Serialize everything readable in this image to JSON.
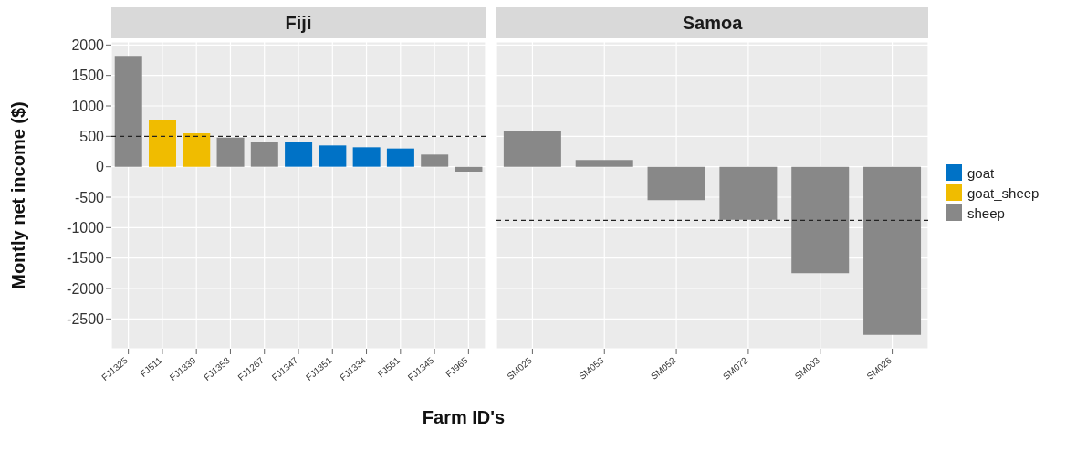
{
  "chart_data": [
    {
      "type": "bar",
      "title": "Fiji",
      "xlabel": "Farm ID's",
      "ylabel": "Montly net income ($)",
      "stacked": true,
      "grid": true,
      "legend": "right",
      "categories": [
        "FJ1325",
        "FJ511",
        "FJ1339",
        "FJ1353",
        "FJ1267",
        "FJ1347",
        "FJ1351",
        "FJ1334",
        "FJ551",
        "FJ1345",
        "FJ965"
      ],
      "series": [
        {
          "name": "goat",
          "color": "#0072c6",
          "values": [
            null,
            null,
            null,
            null,
            null,
            400,
            350,
            320,
            300,
            null,
            null
          ]
        },
        {
          "name": "goat_sheep",
          "color": "#f0bc00",
          "values": [
            null,
            770,
            550,
            null,
            null,
            null,
            null,
            null,
            null,
            null,
            null
          ]
        },
        {
          "name": "sheep",
          "color": "#888888",
          "values": [
            1820,
            null,
            null,
            480,
            400,
            null,
            null,
            null,
            null,
            200,
            -80
          ]
        }
      ],
      "ylim": [
        -2990,
        2050
      ],
      "yticks": [
        -2500,
        -2000,
        -1500,
        -1000,
        -500,
        0,
        500,
        1000,
        1500,
        2000
      ],
      "ref_lines": [
        {
          "axis": "y",
          "value": 500,
          "line_style": "dashed"
        }
      ]
    },
    {
      "type": "bar",
      "title": "Samoa",
      "stacked": true,
      "grid": true,
      "tick_labels": "x",
      "categories": [
        "SM025",
        "SM053",
        "SM052",
        "SM072",
        "SM003",
        "SM026"
      ],
      "series": [
        {
          "color": "#888888",
          "values": [
            580,
            110,
            -550,
            -870,
            -1750,
            -2760
          ]
        }
      ],
      "ylim": [
        -2990,
        2050
      ],
      "yticks": [
        -2500,
        -2000,
        -1500,
        -1000,
        -500,
        0,
        500,
        1000,
        1500,
        2000
      ],
      "ref_lines": [
        {
          "axis": "y",
          "value": -880,
          "line_style": "dashed"
        }
      ]
    }
  ]
}
